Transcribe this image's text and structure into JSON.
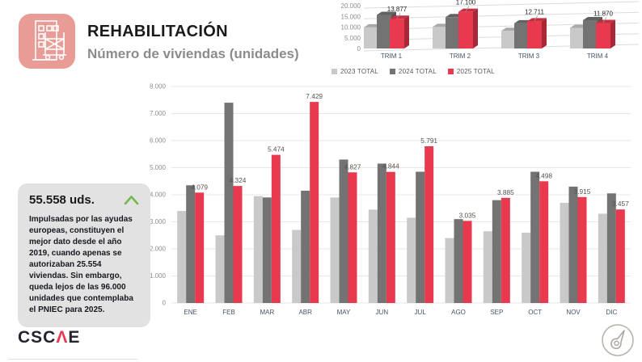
{
  "header": {
    "title": "REHABILITACIÓN",
    "subtitle": "Número de viviendas (unidades)",
    "icon": "building-scaffold-icon",
    "icon_bg": "#e99b95"
  },
  "legend": {
    "items": [
      {
        "label": "2023 TOTAL",
        "color": "#c9c9c9"
      },
      {
        "label": "2024 TOTAL",
        "color": "#737373"
      },
      {
        "label": "2025 TOTAL",
        "color": "#e8394e"
      }
    ]
  },
  "chart_data": [
    {
      "name": "quarterly-totals",
      "type": "bar",
      "style": "3d",
      "categories": [
        "TRIM 1",
        "TRIM 2",
        "TRIM 3",
        "TRIM 4"
      ],
      "series": [
        {
          "name": "2023 TOTAL",
          "color": "#c9c9c9",
          "values": [
            9850,
            10050,
            8200,
            9600
          ]
        },
        {
          "name": "2024 TOTAL",
          "color": "#737373",
          "values": [
            15650,
            14600,
            11750,
            13200
          ]
        },
        {
          "name": "2025 TOTAL",
          "color": "#e8394e",
          "values": [
            13877,
            17100,
            12711,
            11870
          ],
          "labels": [
            "13.877",
            "17.100",
            "12.711",
            "11.870"
          ]
        }
      ],
      "ylim": [
        0,
        20000
      ],
      "yticks": [
        "20.000",
        "15.000",
        "10.000",
        "5.000",
        "0"
      ],
      "grid": true,
      "legend_position": "none"
    },
    {
      "name": "monthly-units",
      "type": "bar",
      "categories": [
        "ENE",
        "FEB",
        "MAR",
        "ABR",
        "MAY",
        "JUN",
        "JUL",
        "AGO",
        "SEP",
        "OCT",
        "NOV",
        "DIC"
      ],
      "series": [
        {
          "name": "2023 TOTAL",
          "color": "#c9c9c9",
          "values": [
            3400,
            2500,
            3950,
            2700,
            3900,
            3450,
            3150,
            2400,
            2650,
            2600,
            3700,
            3300
          ]
        },
        {
          "name": "2024 TOTAL",
          "color": "#737373",
          "values": [
            4350,
            7400,
            3900,
            4150,
            5300,
            5150,
            4850,
            3100,
            3800,
            4850,
            4300,
            4050
          ]
        },
        {
          "name": "2025 TOTAL",
          "color": "#e8394e",
          "values": [
            4079,
            4324,
            5474,
            7429,
            4827,
            4844,
            5791,
            3035,
            3885,
            4498,
            3915,
            3457
          ],
          "labels": [
            "4.079",
            "4.324",
            "5.474",
            "7.429",
            "4.827",
            "4.844",
            "5.791",
            "3.035",
            "3.885",
            "4.498",
            "3.915",
            "3.457"
          ]
        }
      ],
      "ylim": [
        0,
        8000
      ],
      "yticks": [
        "8.000",
        "7.000",
        "6.000",
        "5.000",
        "4.000",
        "3.000",
        "2.000",
        "1.000",
        "0"
      ],
      "grid": true,
      "legend_position": "top"
    }
  ],
  "summary_card": {
    "headline": "55.558 uds.",
    "trend_icon": "up-chevron-icon",
    "trend_color": "#72b84d",
    "body": "Impulsadas por las ayudas europeas, constituyen el mejor dato desde el año 2019, cuando apenas se autorizaban 25.554 viviendas. Sin embargo, queda lejos de las 96.000 unidades que contemplaba el PNIEC para 2025."
  },
  "footer": {
    "logo_prefix": "CSC",
    "logo_accent": "Λ",
    "logo_suffix": "E",
    "logo_accent_color": "#e8394e",
    "compass_icon": "compass-icon"
  }
}
